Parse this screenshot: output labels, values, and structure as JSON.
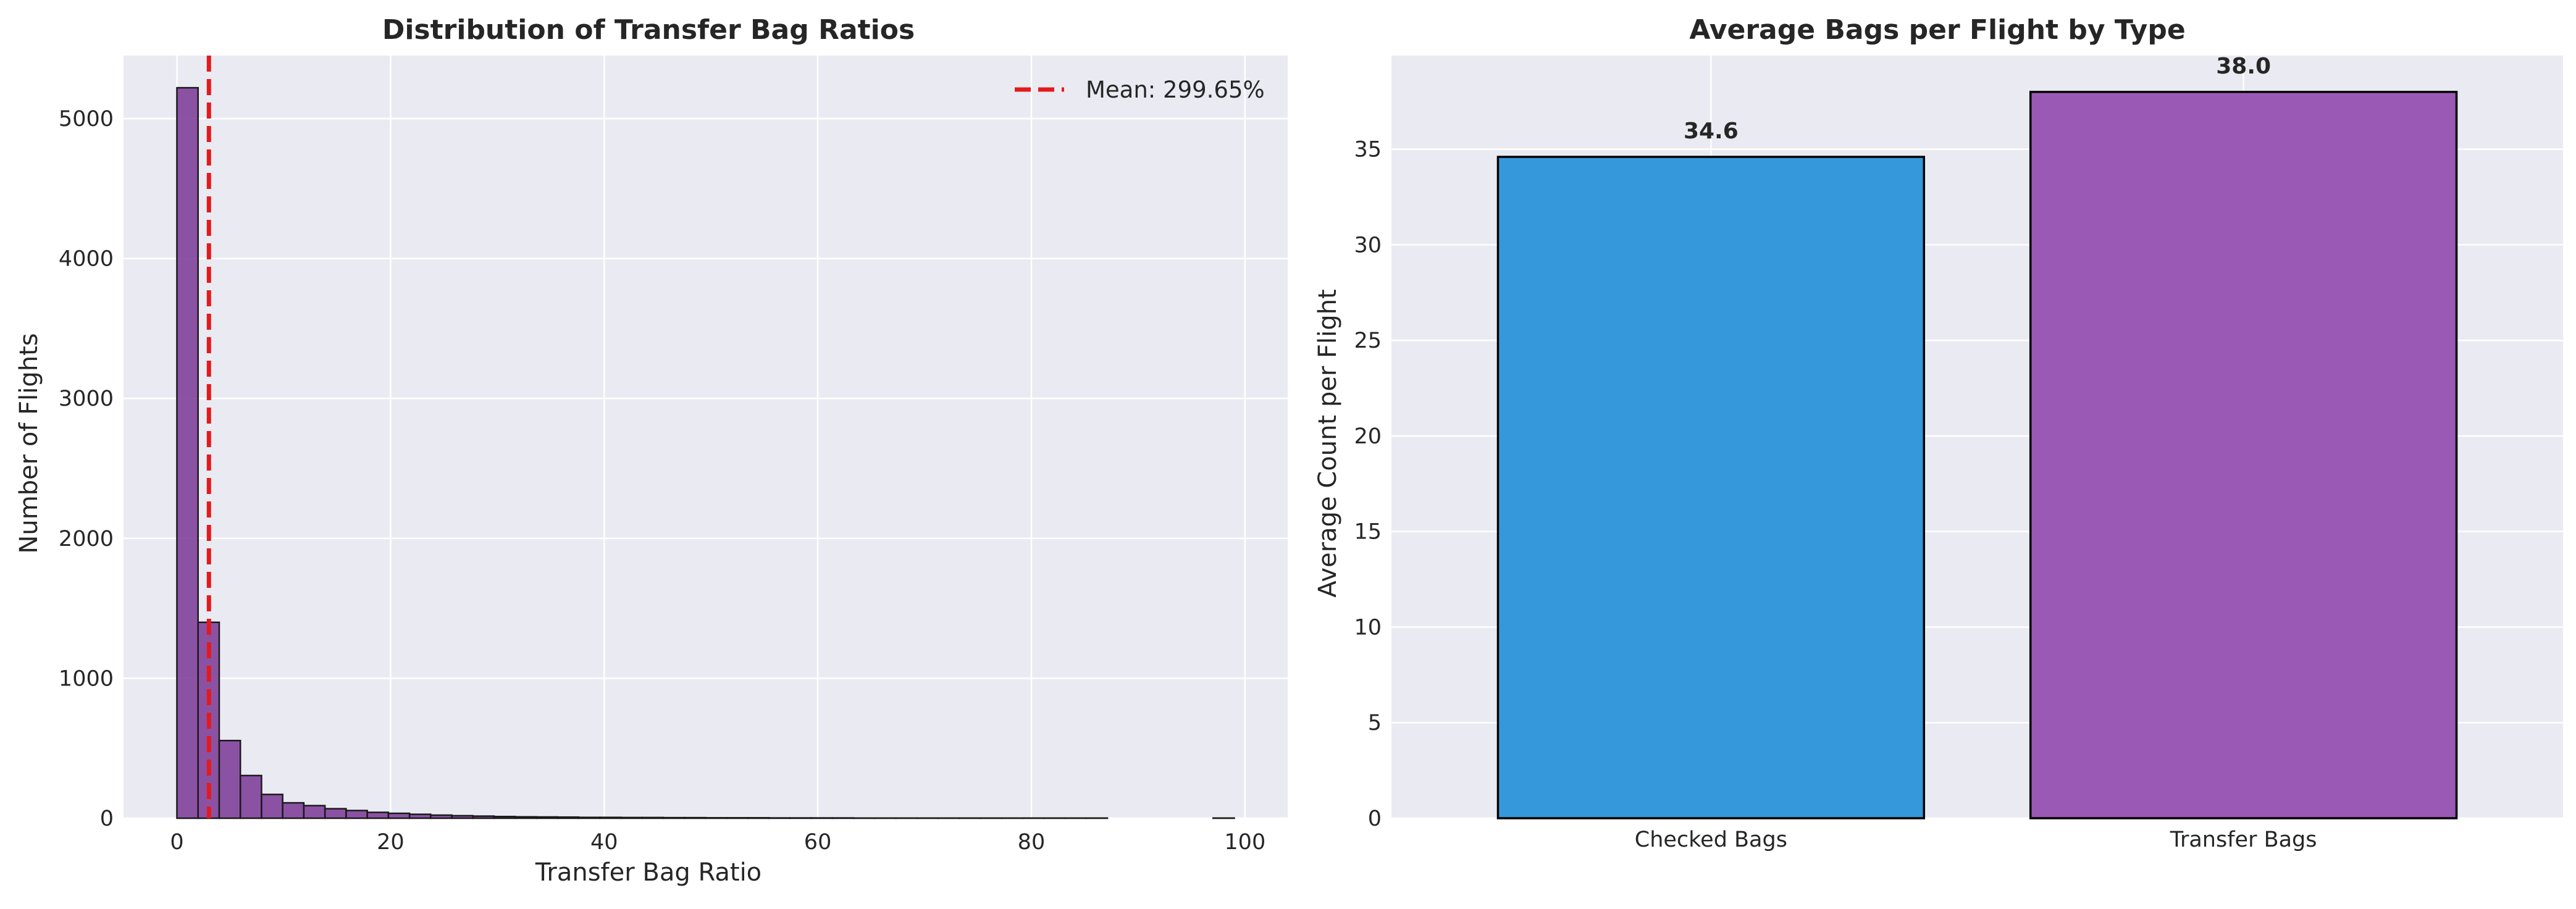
{
  "chart_data": [
    {
      "type": "bar",
      "subtype": "histogram",
      "title": "Distribution of Transfer Bag Ratios",
      "xlabel": "Transfer Bag Ratio",
      "ylabel": "Number of Flights",
      "xlim": [
        -5,
        104
      ],
      "ylim": [
        0,
        5450
      ],
      "xticks": [
        0,
        20,
        40,
        60,
        80,
        100
      ],
      "yticks": [
        0,
        1000,
        2000,
        3000,
        4000,
        5000
      ],
      "bin_edges": [
        0.0,
        1.98,
        3.96,
        5.94,
        7.92,
        9.9,
        11.88,
        13.86,
        15.84,
        17.82,
        19.8,
        21.78,
        23.76,
        25.74,
        27.72,
        29.7,
        31.68,
        33.66,
        35.64,
        37.62,
        39.6,
        41.58,
        43.56,
        45.54,
        47.52,
        49.5,
        51.48,
        53.46,
        55.44,
        57.42,
        59.4,
        61.38,
        63.36,
        65.34,
        67.32,
        69.3,
        71.28,
        73.26,
        75.24,
        77.22,
        79.2,
        81.18,
        83.16,
        85.14,
        87.12,
        89.1,
        91.08,
        93.06,
        95.04,
        97.02,
        99.0
      ],
      "values": [
        5220,
        1400,
        555,
        305,
        170,
        110,
        90,
        68,
        55,
        42,
        35,
        28,
        22,
        18,
        15,
        12,
        10,
        9,
        8,
        6,
        6,
        5,
        5,
        4,
        4,
        3,
        3,
        3,
        2,
        2,
        2,
        2,
        1,
        1,
        1,
        1,
        1,
        1,
        1,
        1,
        1,
        1,
        1,
        1,
        0,
        0,
        0,
        0,
        0,
        1
      ],
      "bar_color": "#7d3c98",
      "mean_line": {
        "x": 2.9965,
        "color": "#e31a1c",
        "style": "dashed"
      },
      "legend": {
        "position": "top-right",
        "entries": [
          "Mean: 299.65%"
        ]
      },
      "grid": true
    },
    {
      "type": "bar",
      "title": "Average Bags per Flight by Type",
      "xlabel": "",
      "ylabel": "Average Count per Flight",
      "ylim": [
        0,
        39.9
      ],
      "yticks": [
        0,
        5,
        10,
        15,
        20,
        25,
        30,
        35
      ],
      "categories": [
        "Checked Bags",
        "Transfer Bags"
      ],
      "values": [
        34.6,
        38.0
      ],
      "data_labels": [
        "34.6",
        "38.0"
      ],
      "colors": [
        "#3498db",
        "#9b59b6"
      ],
      "grid": true
    }
  ]
}
